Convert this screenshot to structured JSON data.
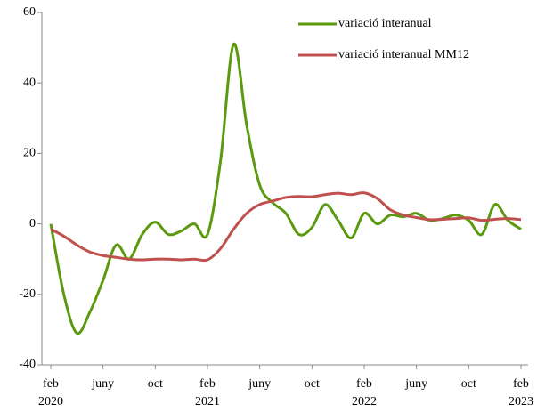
{
  "chart_data": {
    "type": "line",
    "categories": [
      "feb",
      null,
      null,
      null,
      "juny",
      null,
      null,
      null,
      "oct",
      null,
      null,
      null,
      "feb",
      null,
      null,
      null,
      "juny",
      null,
      null,
      null,
      "oct",
      null,
      null,
      null,
      "feb",
      null,
      null,
      null,
      "juny",
      null,
      null,
      null,
      "oct",
      null,
      null,
      null,
      "feb"
    ],
    "category_years": [
      "2020",
      null,
      null,
      null,
      null,
      null,
      null,
      null,
      null,
      null,
      null,
      null,
      "2021",
      null,
      null,
      null,
      null,
      null,
      null,
      null,
      null,
      null,
      null,
      null,
      "2022",
      null,
      null,
      null,
      null,
      null,
      null,
      null,
      null,
      null,
      null,
      null,
      "2023"
    ],
    "series": [
      {
        "name": "variació interanual",
        "color": "#5b9a0f",
        "values": [
          0,
          -20,
          -31,
          -25,
          -16,
          -6,
          -10,
          -3,
          0.5,
          -3,
          -2,
          0,
          -3,
          18,
          51,
          28,
          11,
          6,
          3,
          -3,
          -1,
          5.5,
          1,
          -4,
          3,
          0,
          2.5,
          2,
          3,
          1,
          1.5,
          2.5,
          1,
          -3,
          5.5,
          1,
          -1.5
        ]
      },
      {
        "name": "variació interanual MM12",
        "color": "#c0504d",
        "values": [
          -1.5,
          -3.5,
          -6,
          -8,
          -9,
          -9.5,
          -10,
          -10.2,
          -10,
          -10,
          -10.2,
          -10,
          -10.2,
          -7,
          -1.5,
          3,
          5.5,
          6.5,
          7.5,
          7.8,
          7.7,
          8.3,
          8.7,
          8.3,
          8.8,
          7.2,
          4,
          2.5,
          1.8,
          1.2,
          1.3,
          1.5,
          1.7,
          1,
          1.3,
          1.5,
          1.2
        ]
      }
    ],
    "ylim": [
      -40,
      60
    ],
    "yticks": [
      -40,
      -20,
      0,
      20,
      40,
      60
    ],
    "legend": "top-right"
  }
}
